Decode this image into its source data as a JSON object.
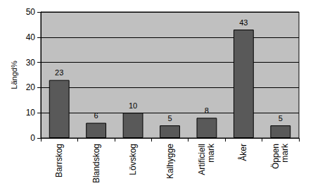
{
  "chart_data": {
    "type": "bar",
    "ylabel": "Längd%",
    "categories": [
      "Barrskog",
      "Blandskog",
      "Lövskog",
      "Kalhygge",
      "Artificiell mark",
      "Åker",
      "Öppen mark"
    ],
    "values": [
      23,
      6,
      10,
      5,
      8,
      43,
      5
    ],
    "color": "#595959",
    "ylim": [
      0,
      50
    ],
    "yticks": [
      0,
      10,
      20,
      30,
      40,
      50
    ],
    "grid": true,
    "data_labels": true
  }
}
